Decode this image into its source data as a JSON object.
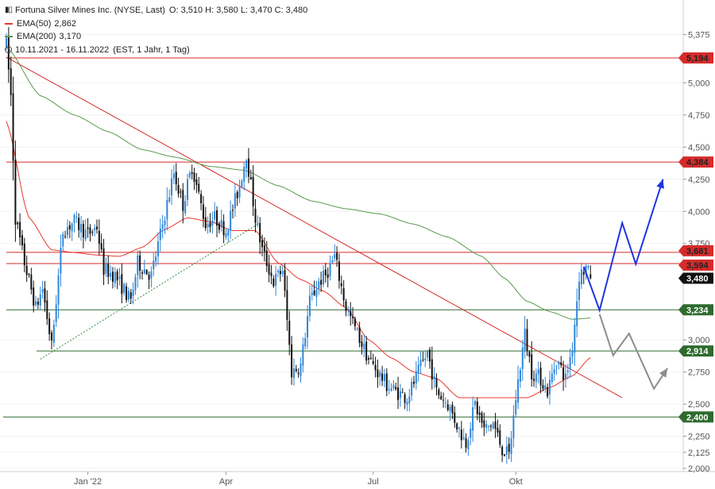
{
  "legend": {
    "title": "Fortuna Silver Mines Inc. (NYSE, Last)",
    "ohlc": "O: 3,510  H: 3,580  L: 3,470  C: 3,480",
    "ema50_label": "EMA(50)",
    "ema50_value": "2,862",
    "ema200_label": "EMA(200)",
    "ema200_value": "3,170",
    "range": "10.11.2021 - 16.11.2022",
    "range_detail": "(EST, 1 Jahr, 1 Tag)"
  },
  "colors": {
    "up": "#2f86d9",
    "down": "#111111",
    "ema50": "#e8382c",
    "ema200": "#5a9a4f",
    "resistance": "#d62b2b",
    "support": "#2e6b2e",
    "forecast_primary": "#1f35e0",
    "forecast_alt": "#8c8c8c",
    "trend_support": "#2f8a3a"
  },
  "chart_data": {
    "type": "candlestick",
    "ylim": [
      2.0,
      5.5
    ],
    "y_ticks": [
      "5,375",
      "5,000",
      "4,750",
      "4,500",
      "4,250",
      "4,000",
      "3,750",
      "3,000",
      "2,750",
      "2,500",
      "2,250",
      "2,125",
      "2,000"
    ],
    "y_tick_values": [
      5.375,
      5.0,
      4.75,
      4.5,
      4.25,
      4.0,
      3.75,
      3.0,
      2.75,
      2.5,
      2.25,
      2.125,
      2.0
    ],
    "x_ticks": [
      "Jan '22",
      "Apr",
      "Jul",
      "Okt"
    ],
    "x_tick_indices": [
      36,
      97,
      162,
      225
    ],
    "last": {
      "open": 3.51,
      "high": 3.58,
      "low": 3.47,
      "close": 3.48,
      "label": "3,480"
    },
    "ema50_last": 2.862,
    "ema200_last": 3.17,
    "horizontal_levels": [
      {
        "value": 5.194,
        "label": "5,194",
        "kind": "resistance"
      },
      {
        "value": 4.384,
        "label": "4,384",
        "kind": "resistance"
      },
      {
        "value": 3.681,
        "label": "3,681",
        "kind": "resistance"
      },
      {
        "value": 3.594,
        "label": "3,594",
        "kind": "resistance"
      },
      {
        "value": 3.234,
        "label": "3,234",
        "kind": "support"
      },
      {
        "value": 2.914,
        "label": "2,914",
        "kind": "support"
      },
      {
        "value": 2.4,
        "label": "2,400",
        "kind": "support"
      }
    ],
    "anchors": [
      [
        0,
        5.3
      ],
      [
        2,
        4.9
      ],
      [
        4,
        3.95
      ],
      [
        8,
        3.6
      ],
      [
        13,
        3.25
      ],
      [
        16,
        3.4
      ],
      [
        20,
        2.95
      ],
      [
        25,
        3.85
      ],
      [
        30,
        3.92
      ],
      [
        36,
        3.82
      ],
      [
        40,
        3.88
      ],
      [
        43,
        3.55
      ],
      [
        48,
        3.5
      ],
      [
        55,
        3.3
      ],
      [
        58,
        3.6
      ],
      [
        64,
        3.5
      ],
      [
        69,
        3.9
      ],
      [
        74,
        4.3
      ],
      [
        78,
        4.05
      ],
      [
        82,
        4.35
      ],
      [
        88,
        3.9
      ],
      [
        92,
        3.95
      ],
      [
        97,
        3.85
      ],
      [
        103,
        4.2
      ],
      [
        106,
        4.45
      ],
      [
        110,
        3.95
      ],
      [
        113,
        3.7
      ],
      [
        118,
        3.45
      ],
      [
        122,
        3.55
      ],
      [
        126,
        2.75
      ],
      [
        130,
        2.8
      ],
      [
        134,
        3.3
      ],
      [
        138,
        3.45
      ],
      [
        141,
        3.5
      ],
      [
        145,
        3.65
      ],
      [
        150,
        3.25
      ],
      [
        155,
        3.05
      ],
      [
        160,
        2.85
      ],
      [
        164,
        2.75
      ],
      [
        168,
        2.65
      ],
      [
        172,
        2.6
      ],
      [
        177,
        2.55
      ],
      [
        182,
        2.75
      ],
      [
        186,
        2.9
      ],
      [
        190,
        2.6
      ],
      [
        195,
        2.5
      ],
      [
        200,
        2.3
      ],
      [
        203,
        2.2
      ],
      [
        207,
        2.5
      ],
      [
        211,
        2.3
      ],
      [
        215,
        2.35
      ],
      [
        219,
        2.15
      ],
      [
        222,
        2.1
      ],
      [
        225,
        2.55
      ],
      [
        229,
        3.05
      ],
      [
        232,
        2.75
      ],
      [
        236,
        2.7
      ],
      [
        239,
        2.6
      ],
      [
        243,
        2.85
      ],
      [
        247,
        2.7
      ],
      [
        250,
        2.95
      ],
      [
        253,
        3.5
      ],
      [
        256,
        3.56
      ],
      [
        258,
        3.48
      ]
    ],
    "ema50_points": [
      [
        0,
        4.7
      ],
      [
        10,
        3.95
      ],
      [
        20,
        3.7
      ],
      [
        30,
        3.68
      ],
      [
        40,
        3.66
      ],
      [
        50,
        3.65
      ],
      [
        60,
        3.72
      ],
      [
        70,
        3.86
      ],
      [
        80,
        3.95
      ],
      [
        90,
        3.92
      ],
      [
        100,
        3.85
      ],
      [
        110,
        3.85
      ],
      [
        120,
        3.6
      ],
      [
        130,
        3.47
      ],
      [
        140,
        3.38
      ],
      [
        150,
        3.25
      ],
      [
        160,
        3.0
      ],
      [
        170,
        2.86
      ],
      [
        180,
        2.75
      ],
      [
        190,
        2.7
      ],
      [
        200,
        2.55
      ],
      [
        210,
        2.55
      ],
      [
        220,
        2.55
      ],
      [
        230,
        2.55
      ],
      [
        240,
        2.63
      ],
      [
        250,
        2.72
      ],
      [
        258,
        2.862
      ]
    ],
    "ema200_points": [
      [
        0,
        5.28
      ],
      [
        15,
        4.9
      ],
      [
        30,
        4.75
      ],
      [
        45,
        4.62
      ],
      [
        60,
        4.48
      ],
      [
        75,
        4.42
      ],
      [
        90,
        4.35
      ],
      [
        105,
        4.32
      ],
      [
        120,
        4.2
      ],
      [
        135,
        4.08
      ],
      [
        150,
        4.02
      ],
      [
        165,
        3.98
      ],
      [
        180,
        3.9
      ],
      [
        195,
        3.8
      ],
      [
        210,
        3.65
      ],
      [
        220,
        3.48
      ],
      [
        230,
        3.3
      ],
      [
        240,
        3.22
      ],
      [
        250,
        3.16
      ],
      [
        258,
        3.17
      ]
    ],
    "downtrend_line": [
      [
        0,
        5.2
      ],
      [
        272,
        2.55
      ]
    ],
    "support_trend_line": [
      [
        15,
        2.85
      ],
      [
        111,
        3.9
      ]
    ],
    "forecast_primary": [
      [
        255,
        3.57
      ],
      [
        262,
        3.23
      ],
      [
        272,
        3.91
      ],
      [
        278,
        3.59
      ],
      [
        290,
        4.25
      ]
    ],
    "forecast_alt": [
      [
        262,
        3.2
      ],
      [
        268,
        2.88
      ],
      [
        275,
        3.05
      ],
      [
        286,
        2.62
      ],
      [
        292,
        2.78
      ]
    ]
  }
}
